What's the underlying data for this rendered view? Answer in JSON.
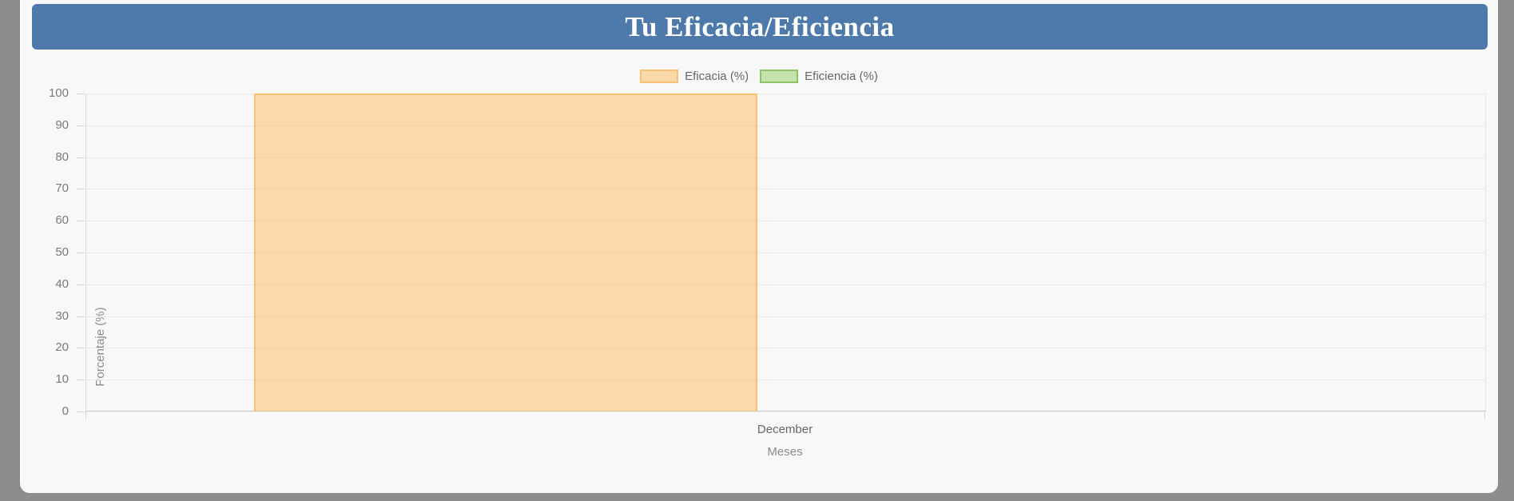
{
  "page": {
    "background": "#8d8d8d",
    "card_background": "#f8f8f8"
  },
  "header": {
    "title": "Tu Eficacia/Eficiencia",
    "background": "#4d79ab",
    "text_color": "#ffffff"
  },
  "chart_data": {
    "type": "bar",
    "title": "Tu Eficacia/Eficiencia",
    "categories": [
      "December"
    ],
    "series": [
      {
        "name": "Eficacia (%)",
        "values": [
          100
        ],
        "fill": "rgba(255,184,81,0.47)",
        "border": "#f6c172"
      },
      {
        "name": "Eficiencia (%)",
        "values": [
          0
        ],
        "fill": "rgba(137,201,84,0.45)",
        "border": "#8cc46a"
      }
    ],
    "xlabel": "Meses",
    "ylabel": "Porcentaje (%)",
    "ylim": [
      0,
      100
    ],
    "ytick_step": 10,
    "ytick_labels": [
      "0",
      "10",
      "20",
      "30",
      "40",
      "50",
      "60",
      "70",
      "80",
      "90",
      "100"
    ],
    "legend_position": "top-center",
    "grid": true,
    "tick_color": "#7a7a7a",
    "gridline_color": "#e9e9e9"
  }
}
